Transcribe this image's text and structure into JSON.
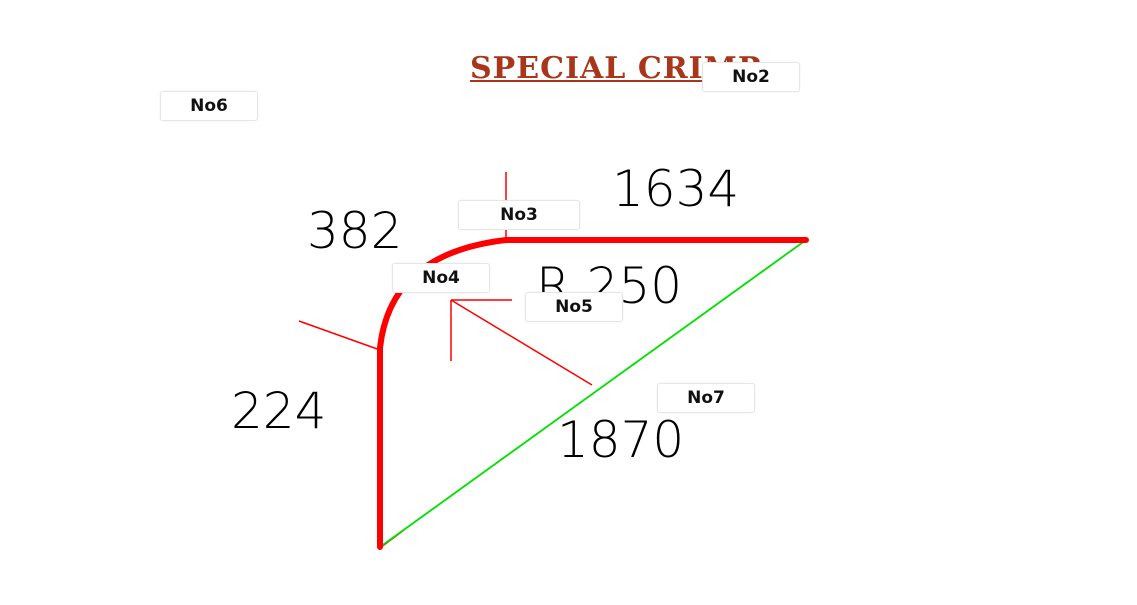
{
  "title": "SPECIAL CRIMP",
  "dimensions": {
    "top_length": "1634",
    "corner_length": "382",
    "left_length": "224",
    "diagonal_length": "1870",
    "radius": "R 250"
  },
  "tags": [
    "No2",
    "No3",
    "No4",
    "No5",
    "No6",
    "No7"
  ],
  "colors": {
    "title": "#a8361a",
    "profile": "#ff0000",
    "diagonal": "#00e000",
    "text": "#000000"
  }
}
